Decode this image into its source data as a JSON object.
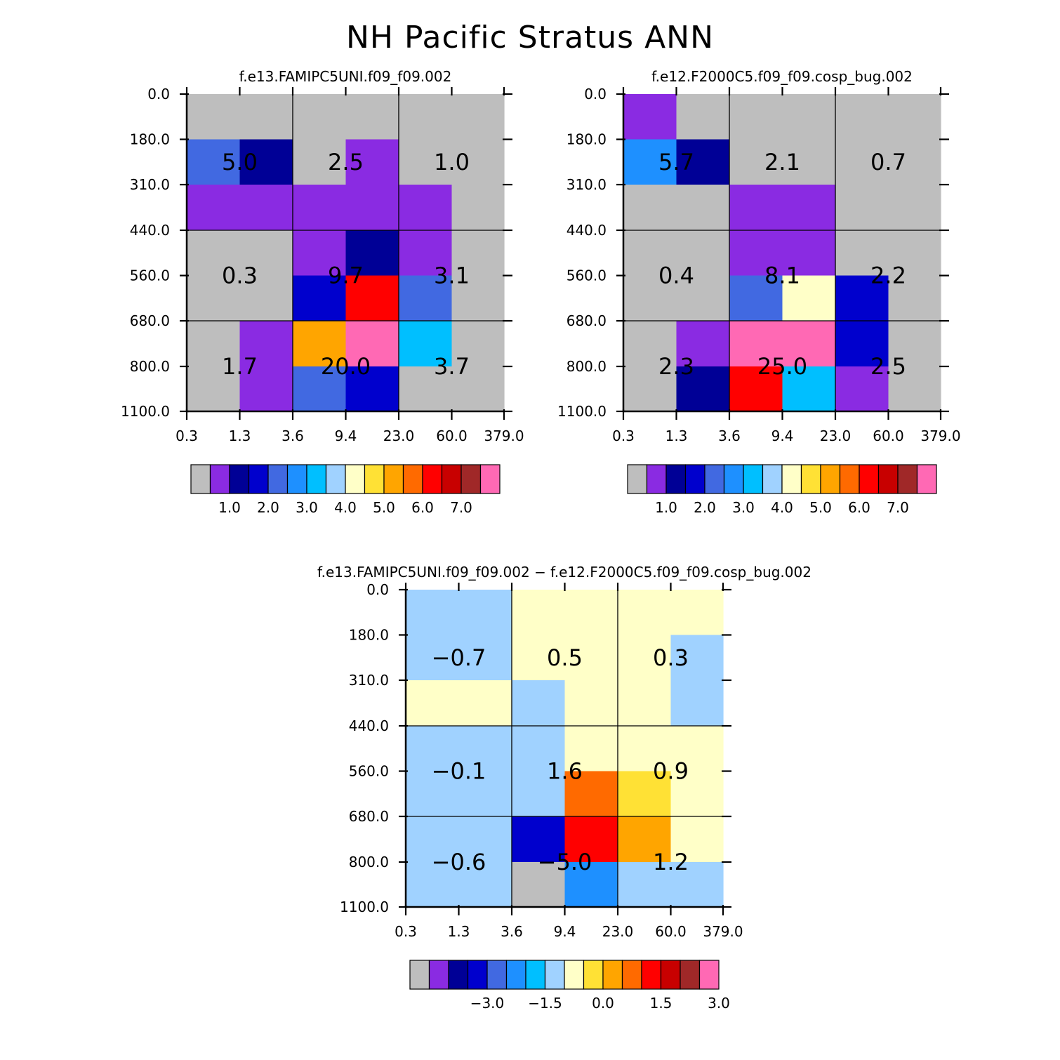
{
  "figure": {
    "title": "NH Pacific Stratus ANN"
  },
  "colors": {
    "palette": [
      "#bebebe",
      "#8a2be2",
      "#000096",
      "#0000cd",
      "#4169e1",
      "#1e90ff",
      "#00bfff",
      "#a0d2ff",
      "#ffffc8",
      "#ffe135",
      "#ffa500",
      "#ff6a00",
      "#ff0000",
      "#c80000",
      "#a02828",
      "#ff69b4"
    ]
  },
  "chart_data": [
    {
      "type": "heatmap",
      "title": "f.e13.FAMIPC5UNI.f09_f09.002",
      "x_tick_labels": [
        "0.3",
        "1.3",
        "3.6",
        "9.4",
        "23.0",
        "60.0",
        "379.0"
      ],
      "y_tick_labels": [
        "0.0",
        "180.0",
        "310.0",
        "440.0",
        "560.0",
        "680.0",
        "800.0",
        "1100.0"
      ],
      "cell_colors": [
        [
          0,
          0,
          0,
          0,
          0,
          0
        ],
        [
          4,
          2,
          0,
          1,
          0,
          0
        ],
        [
          1,
          1,
          1,
          1,
          1,
          0
        ],
        [
          0,
          0,
          1,
          2,
          1,
          0
        ],
        [
          0,
          0,
          3,
          12,
          4,
          0
        ],
        [
          0,
          1,
          10,
          15,
          6,
          0
        ],
        [
          0,
          1,
          4,
          3,
          0,
          0
        ]
      ],
      "block_values": [
        [
          "5.0",
          "2.5",
          "1.0"
        ],
        [
          "0.3",
          "9.7",
          "3.1"
        ],
        [
          "1.7",
          "20.0",
          "3.7"
        ]
      ],
      "colorbar_labels": [
        "1.0",
        "2.0",
        "3.0",
        "4.0",
        "5.0",
        "6.0",
        "7.0"
      ]
    },
    {
      "type": "heatmap",
      "title": "f.e12.F2000C5.f09_f09.cosp_bug.002",
      "x_tick_labels": [
        "0.3",
        "1.3",
        "3.6",
        "9.4",
        "23.0",
        "60.0",
        "379.0"
      ],
      "y_tick_labels": [
        "0.0",
        "180.0",
        "310.0",
        "440.0",
        "560.0",
        "680.0",
        "800.0",
        "1100.0"
      ],
      "cell_colors": [
        [
          1,
          0,
          0,
          0,
          0,
          0
        ],
        [
          5,
          2,
          0,
          0,
          0,
          0
        ],
        [
          0,
          0,
          1,
          1,
          0,
          0
        ],
        [
          0,
          0,
          1,
          1,
          0,
          0
        ],
        [
          0,
          0,
          4,
          8,
          3,
          0
        ],
        [
          0,
          1,
          15,
          15,
          3,
          0
        ],
        [
          0,
          2,
          12,
          6,
          1,
          0
        ]
      ],
      "block_values": [
        [
          "5.7",
          "2.1",
          "0.7"
        ],
        [
          "0.4",
          "8.1",
          "2.2"
        ],
        [
          "2.3",
          "25.0",
          "2.5"
        ]
      ],
      "colorbar_labels": [
        "1.0",
        "2.0",
        "3.0",
        "4.0",
        "5.0",
        "6.0",
        "7.0"
      ]
    },
    {
      "type": "heatmap",
      "title": "f.e13.FAMIPC5UNI.f09_f09.002 - f.e12.F2000C5.f09_f09.cosp_bug.002",
      "x_tick_labels": [
        "0.3",
        "1.3",
        "3.6",
        "9.4",
        "23.0",
        "60.0",
        "379.0"
      ],
      "y_tick_labels": [
        "0.0",
        "180.0",
        "310.0",
        "440.0",
        "560.0",
        "680.0",
        "800.0",
        "1100.0"
      ],
      "cell_colors": [
        [
          7,
          7,
          8,
          8,
          8,
          8
        ],
        [
          7,
          7,
          8,
          8,
          8,
          7
        ],
        [
          8,
          8,
          7,
          8,
          8,
          7
        ],
        [
          7,
          7,
          7,
          8,
          8,
          8
        ],
        [
          7,
          7,
          7,
          11,
          9,
          8
        ],
        [
          7,
          7,
          3,
          12,
          10,
          8
        ],
        [
          7,
          7,
          0,
          5,
          7,
          7
        ]
      ],
      "block_values": [
        [
          "-0.7",
          "0.5",
          "0.3"
        ],
        [
          "-0.1",
          "1.6",
          "0.9"
        ],
        [
          "-0.6",
          "-5.0",
          "1.2"
        ]
      ],
      "colorbar_labels": [
        "-3.0",
        "-1.5",
        "0.0",
        "1.5",
        "3.0"
      ]
    }
  ]
}
